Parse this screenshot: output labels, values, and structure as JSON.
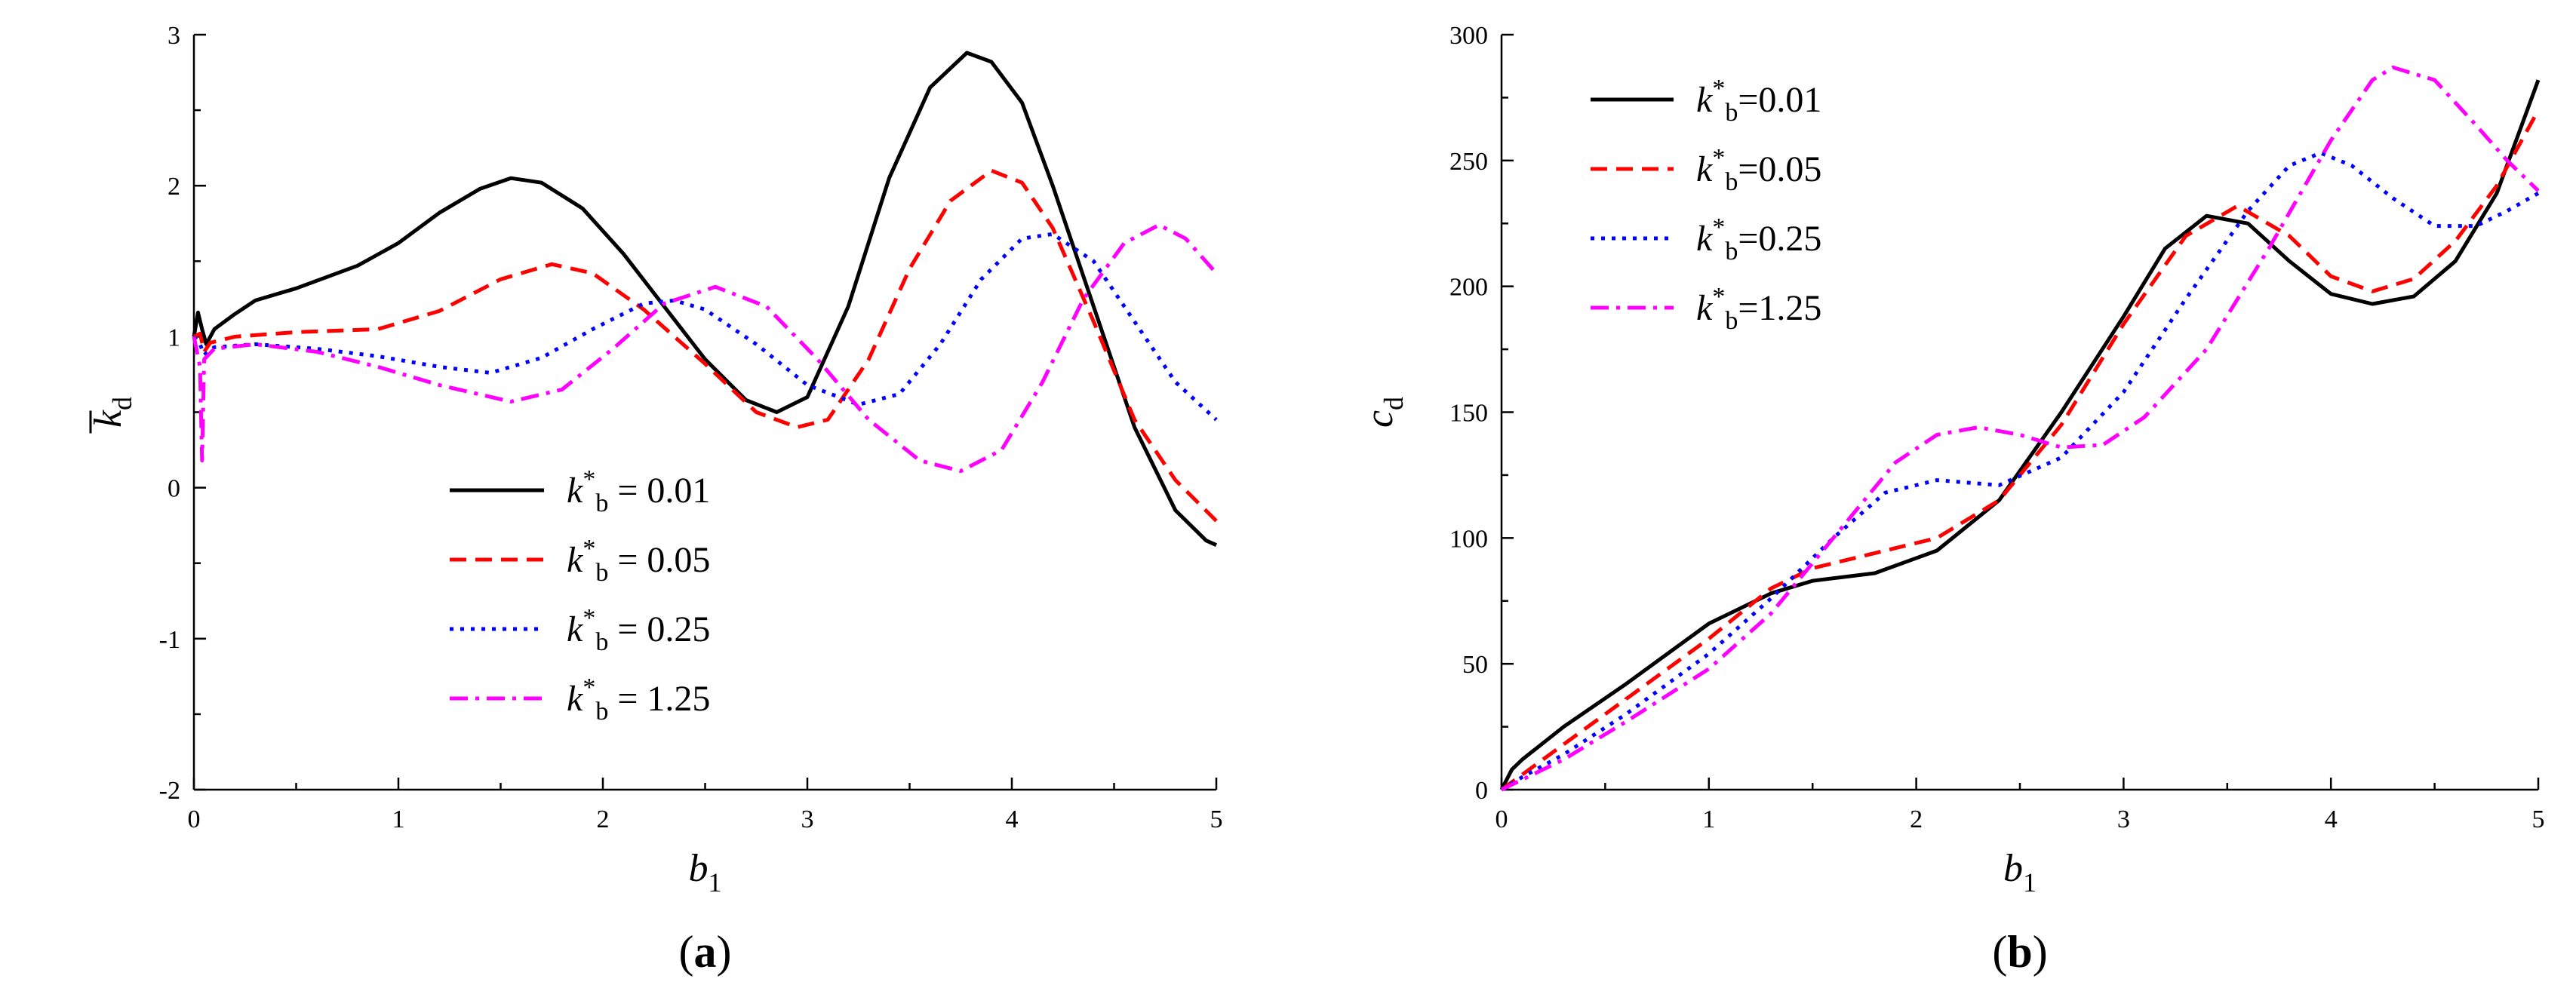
{
  "colors": {
    "black": "#000000",
    "red": "#ff0000",
    "blue": "#0000ff",
    "magenta": "#ff00ff"
  },
  "chart_data": [
    {
      "id": "a",
      "type": "line",
      "panel_label": "a",
      "xlabel": "b",
      "xlabel_sub": "1",
      "ylabel": "k",
      "ylabel_sub": "d",
      "ylabel_overbar": true,
      "xlim": [
        0,
        5
      ],
      "ylim": [
        -2,
        3
      ],
      "xticks": [
        0,
        1,
        2,
        3,
        4,
        5
      ],
      "yticks": [
        -2,
        -1,
        0,
        1,
        2,
        3
      ],
      "legend_position": "bottom-center",
      "series": [
        {
          "name": "k*b = 0.01",
          "legend": {
            "k": "k",
            "sup": "*",
            "sub": "b",
            "rest": " = 0.01"
          },
          "color": "#000000",
          "dash": "solid",
          "points": [
            [
              0,
              1.0
            ],
            [
              0.02,
              1.16
            ],
            [
              0.04,
              1.05
            ],
            [
              0.06,
              0.95
            ],
            [
              0.1,
              1.05
            ],
            [
              0.2,
              1.15
            ],
            [
              0.3,
              1.24
            ],
            [
              0.5,
              1.32
            ],
            [
              0.8,
              1.47
            ],
            [
              1.0,
              1.62
            ],
            [
              1.2,
              1.82
            ],
            [
              1.4,
              1.98
            ],
            [
              1.55,
              2.05
            ],
            [
              1.7,
              2.02
            ],
            [
              1.9,
              1.85
            ],
            [
              2.1,
              1.55
            ],
            [
              2.3,
              1.2
            ],
            [
              2.5,
              0.85
            ],
            [
              2.7,
              0.58
            ],
            [
              2.85,
              0.5
            ],
            [
              3.0,
              0.6
            ],
            [
              3.2,
              1.2
            ],
            [
              3.4,
              2.05
            ],
            [
              3.6,
              2.65
            ],
            [
              3.78,
              2.88
            ],
            [
              3.9,
              2.82
            ],
            [
              4.05,
              2.55
            ],
            [
              4.2,
              2.0
            ],
            [
              4.4,
              1.2
            ],
            [
              4.6,
              0.4
            ],
            [
              4.8,
              -0.15
            ],
            [
              4.95,
              -0.35
            ],
            [
              5.0,
              -0.38
            ]
          ]
        },
        {
          "name": "k*b = 0.05",
          "legend": {
            "k": "k",
            "sup": "*",
            "sub": "b",
            "rest": " = 0.05"
          },
          "color": "#ff0000",
          "dash": "dashed",
          "points": [
            [
              0,
              1.0
            ],
            [
              0.03,
              1.02
            ],
            [
              0.05,
              0.9
            ],
            [
              0.08,
              0.96
            ],
            [
              0.2,
              1.0
            ],
            [
              0.5,
              1.03
            ],
            [
              0.9,
              1.05
            ],
            [
              1.2,
              1.17
            ],
            [
              1.5,
              1.38
            ],
            [
              1.75,
              1.48
            ],
            [
              1.95,
              1.42
            ],
            [
              2.2,
              1.18
            ],
            [
              2.5,
              0.82
            ],
            [
              2.75,
              0.5
            ],
            [
              2.95,
              0.4
            ],
            [
              3.1,
              0.45
            ],
            [
              3.3,
              0.85
            ],
            [
              3.5,
              1.45
            ],
            [
              3.7,
              1.9
            ],
            [
              3.9,
              2.1
            ],
            [
              4.05,
              2.02
            ],
            [
              4.2,
              1.72
            ],
            [
              4.4,
              1.1
            ],
            [
              4.6,
              0.45
            ],
            [
              4.8,
              0.05
            ],
            [
              5.0,
              -0.22
            ]
          ]
        },
        {
          "name": "k*b = 0.25",
          "legend": {
            "k": "k",
            "sup": "*",
            "sub": "b",
            "rest": " = 0.25"
          },
          "color": "#0000ff",
          "dash": "dotted",
          "points": [
            [
              0,
              1.0
            ],
            [
              0.03,
              0.95
            ],
            [
              0.05,
              0.88
            ],
            [
              0.1,
              0.93
            ],
            [
              0.3,
              0.95
            ],
            [
              0.6,
              0.92
            ],
            [
              0.9,
              0.87
            ],
            [
              1.2,
              0.8
            ],
            [
              1.45,
              0.76
            ],
            [
              1.7,
              0.86
            ],
            [
              1.95,
              1.05
            ],
            [
              2.2,
              1.22
            ],
            [
              2.35,
              1.24
            ],
            [
              2.5,
              1.18
            ],
            [
              2.75,
              0.95
            ],
            [
              3.0,
              0.68
            ],
            [
              3.25,
              0.55
            ],
            [
              3.45,
              0.62
            ],
            [
              3.65,
              0.95
            ],
            [
              3.85,
              1.38
            ],
            [
              4.05,
              1.65
            ],
            [
              4.2,
              1.68
            ],
            [
              4.4,
              1.5
            ],
            [
              4.6,
              1.1
            ],
            [
              4.8,
              0.7
            ],
            [
              5.0,
              0.45
            ]
          ]
        },
        {
          "name": "k*b = 1.25",
          "legend": {
            "k": "k",
            "sup": "*",
            "sub": "b",
            "rest": " = 1.25"
          },
          "color": "#ff00ff",
          "dash": "dashdot",
          "points": [
            [
              0,
              1.0
            ],
            [
              0.03,
              0.8
            ],
            [
              0.04,
              0.18
            ],
            [
              0.05,
              0.85
            ],
            [
              0.1,
              0.92
            ],
            [
              0.3,
              0.95
            ],
            [
              0.6,
              0.9
            ],
            [
              0.9,
              0.8
            ],
            [
              1.2,
              0.68
            ],
            [
              1.55,
              0.57
            ],
            [
              1.8,
              0.65
            ],
            [
              2.05,
              0.92
            ],
            [
              2.3,
              1.22
            ],
            [
              2.55,
              1.33
            ],
            [
              2.8,
              1.2
            ],
            [
              3.05,
              0.85
            ],
            [
              3.3,
              0.45
            ],
            [
              3.55,
              0.18
            ],
            [
              3.75,
              0.11
            ],
            [
              3.95,
              0.25
            ],
            [
              4.15,
              0.7
            ],
            [
              4.35,
              1.25
            ],
            [
              4.55,
              1.62
            ],
            [
              4.72,
              1.74
            ],
            [
              4.85,
              1.65
            ],
            [
              5.0,
              1.42
            ]
          ]
        }
      ]
    },
    {
      "id": "b",
      "type": "line",
      "panel_label": "b",
      "xlabel": "b",
      "xlabel_sub": "1",
      "ylabel": "c",
      "ylabel_sub": "d",
      "ylabel_overbar": false,
      "xlim": [
        0,
        5
      ],
      "ylim": [
        0,
        300
      ],
      "xticks": [
        0,
        1,
        2,
        3,
        4,
        5
      ],
      "yticks": [
        0,
        50,
        100,
        150,
        200,
        250,
        300
      ],
      "legend_position": "top-left",
      "series": [
        {
          "name": "k*b=0.01",
          "legend": {
            "k": "k",
            "sup": "*",
            "sub": "b",
            "rest": "=0.01"
          },
          "color": "#000000",
          "dash": "solid",
          "points": [
            [
              0,
              0
            ],
            [
              0.05,
              8
            ],
            [
              0.1,
              12
            ],
            [
              0.3,
              25
            ],
            [
              0.6,
              42
            ],
            [
              1.0,
              66
            ],
            [
              1.3,
              78
            ],
            [
              1.5,
              83
            ],
            [
              1.8,
              86
            ],
            [
              2.1,
              95
            ],
            [
              2.4,
              115
            ],
            [
              2.7,
              150
            ],
            [
              3.0,
              188
            ],
            [
              3.2,
              215
            ],
            [
              3.4,
              228
            ],
            [
              3.6,
              225
            ],
            [
              3.8,
              210
            ],
            [
              4.0,
              197
            ],
            [
              4.2,
              193
            ],
            [
              4.4,
              196
            ],
            [
              4.6,
              210
            ],
            [
              4.8,
              237
            ],
            [
              5.0,
              282
            ]
          ]
        },
        {
          "name": "k*b=0.05",
          "legend": {
            "k": "k",
            "sup": "*",
            "sub": "b",
            "rest": "=0.05"
          },
          "color": "#ff0000",
          "dash": "dashed",
          "points": [
            [
              0,
              0
            ],
            [
              0.1,
              6
            ],
            [
              0.3,
              18
            ],
            [
              0.6,
              36
            ],
            [
              1.0,
              60
            ],
            [
              1.3,
              80
            ],
            [
              1.5,
              88
            ],
            [
              1.8,
              94
            ],
            [
              2.1,
              100
            ],
            [
              2.4,
              115
            ],
            [
              2.7,
              145
            ],
            [
              3.0,
              185
            ],
            [
              3.3,
              220
            ],
            [
              3.55,
              232
            ],
            [
              3.8,
              220
            ],
            [
              4.0,
              204
            ],
            [
              4.2,
              198
            ],
            [
              4.4,
              203
            ],
            [
              4.6,
              218
            ],
            [
              4.8,
              240
            ],
            [
              5.0,
              270
            ]
          ]
        },
        {
          "name": "k*b=0.25",
          "legend": {
            "k": "k",
            "sup": "*",
            "sub": "b",
            "rest": "=0.25"
          },
          "color": "#0000ff",
          "dash": "dotted",
          "points": [
            [
              0,
              0
            ],
            [
              0.1,
              5
            ],
            [
              0.3,
              14
            ],
            [
              0.6,
              30
            ],
            [
              1.0,
              54
            ],
            [
              1.3,
              76
            ],
            [
              1.6,
              100
            ],
            [
              1.85,
              118
            ],
            [
              2.1,
              123
            ],
            [
              2.4,
              121
            ],
            [
              2.7,
              132
            ],
            [
              3.0,
              158
            ],
            [
              3.3,
              195
            ],
            [
              3.6,
              230
            ],
            [
              3.8,
              248
            ],
            [
              3.95,
              253
            ],
            [
              4.1,
              248
            ],
            [
              4.3,
              235
            ],
            [
              4.5,
              224
            ],
            [
              4.7,
              224
            ],
            [
              4.85,
              230
            ],
            [
              5.0,
              237
            ]
          ]
        },
        {
          "name": "k*b=1.25",
          "legend": {
            "k": "k",
            "sup": "*",
            "sub": "b",
            "rest": "=1.25"
          },
          "color": "#ff00ff",
          "dash": "dashdot",
          "points": [
            [
              0,
              0
            ],
            [
              0.1,
              4
            ],
            [
              0.3,
              12
            ],
            [
              0.6,
              27
            ],
            [
              1.0,
              48
            ],
            [
              1.3,
              70
            ],
            [
              1.6,
              100
            ],
            [
              1.9,
              130
            ],
            [
              2.1,
              141
            ],
            [
              2.3,
              144
            ],
            [
              2.5,
              141
            ],
            [
              2.7,
              136
            ],
            [
              2.9,
              137
            ],
            [
              3.1,
              148
            ],
            [
              3.4,
              175
            ],
            [
              3.7,
              215
            ],
            [
              4.0,
              258
            ],
            [
              4.2,
              282
            ],
            [
              4.3,
              287
            ],
            [
              4.5,
              282
            ],
            [
              4.7,
              264
            ],
            [
              4.85,
              250
            ],
            [
              5.0,
              238
            ]
          ]
        }
      ]
    }
  ]
}
